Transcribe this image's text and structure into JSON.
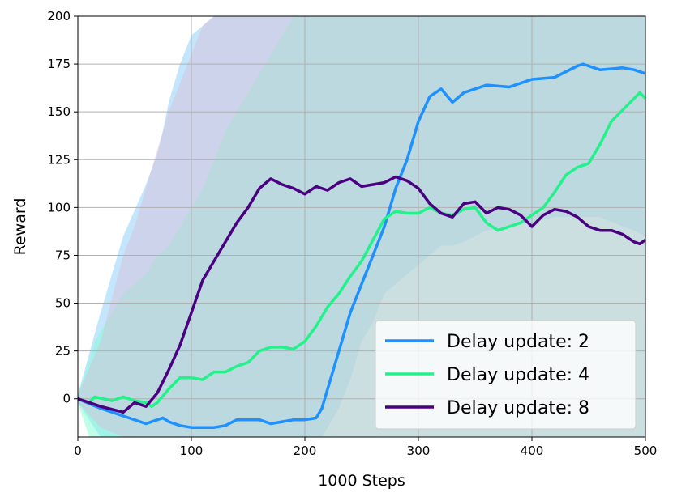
{
  "chart_data": {
    "type": "line",
    "title": "",
    "xlabel": "1000 Steps",
    "ylabel": "Reward",
    "xlim": [
      0,
      500
    ],
    "ylim": [
      -20,
      200
    ],
    "grid": true,
    "legend_position": "bottom-right",
    "x_ticks": [
      "0",
      "100",
      "200",
      "300",
      "400",
      "500"
    ],
    "y_ticks": [
      "0",
      "25",
      "50",
      "75",
      "100",
      "125",
      "150",
      "175",
      "200"
    ],
    "x_tick_values": [
      0,
      100,
      200,
      300,
      400,
      500
    ],
    "y_tick_values": [
      0,
      25,
      50,
      75,
      100,
      125,
      150,
      175,
      200
    ],
    "series": [
      {
        "name": "Delay update: 2",
        "color": "#1e90ff",
        "band_color": "#87cefa",
        "x": [
          0,
          20,
          40,
          60,
          70,
          75,
          80,
          90,
          100,
          120,
          130,
          140,
          160,
          170,
          180,
          190,
          200,
          210,
          215,
          220,
          230,
          240,
          250,
          260,
          270,
          280,
          290,
          300,
          310,
          320,
          330,
          340,
          350,
          360,
          380,
          400,
          420,
          440,
          445,
          460,
          480,
          490,
          500
        ],
        "values": [
          0,
          -5,
          -9,
          -13,
          -11,
          -10,
          -12,
          -14,
          -15,
          -15,
          -14,
          -11,
          -11,
          -13,
          -12,
          -11,
          -11,
          -10,
          -5,
          5,
          25,
          45,
          60,
          75,
          90,
          110,
          125,
          145,
          158,
          162,
          155,
          160,
          162,
          164,
          163,
          167,
          168,
          174,
          175,
          172,
          173,
          172,
          170
        ],
        "band_upper": [
          2,
          45,
          85,
          112,
          128,
          140,
          155,
          175,
          190,
          200,
          200,
          200,
          200,
          200,
          200,
          200,
          200,
          200,
          200,
          200,
          200,
          200,
          200,
          200,
          200,
          200,
          200,
          200,
          200,
          200,
          200,
          200,
          200,
          200,
          200,
          200,
          200,
          200,
          200,
          200,
          200,
          200,
          200
        ],
        "band_lower": [
          -2,
          -20,
          -20,
          -20,
          -20,
          -20,
          -20,
          -20,
          -20,
          -20,
          -20,
          -20,
          -20,
          -20,
          -20,
          -20,
          -20,
          -20,
          -20,
          -15,
          -5,
          10,
          30,
          40,
          55,
          60,
          65,
          70,
          75,
          80,
          80,
          82,
          85,
          88,
          90,
          92,
          95,
          95,
          95,
          95,
          90,
          88,
          85
        ]
      },
      {
        "name": "Delay update: 4",
        "color": "#21f28a",
        "band_color": "#7fffd4",
        "x": [
          0,
          10,
          15,
          30,
          40,
          50,
          60,
          65,
          70,
          80,
          90,
          100,
          110,
          120,
          130,
          140,
          150,
          160,
          170,
          180,
          190,
          200,
          210,
          220,
          230,
          240,
          250,
          260,
          270,
          280,
          290,
          300,
          310,
          320,
          330,
          340,
          350,
          360,
          370,
          380,
          390,
          400,
          410,
          420,
          430,
          440,
          450,
          460,
          470,
          480,
          490,
          495,
          500
        ],
        "values": [
          0,
          -2,
          1,
          -1,
          1,
          -1,
          -2,
          -4,
          -2,
          5,
          11,
          11,
          10,
          14,
          14,
          17,
          19,
          25,
          27,
          27,
          26,
          30,
          38,
          48,
          55,
          64,
          72,
          83,
          94,
          98,
          97,
          97,
          100,
          97,
          96,
          99,
          100,
          92,
          88,
          90,
          92,
          96,
          100,
          108,
          117,
          121,
          123,
          133,
          145,
          151,
          157,
          160,
          157
        ],
        "band_upper": [
          2,
          20,
          30,
          45,
          55,
          60,
          65,
          70,
          75,
          80,
          90,
          100,
          110,
          125,
          140,
          150,
          160,
          170,
          180,
          190,
          200,
          200,
          200,
          200,
          200,
          200,
          200,
          200,
          200,
          200,
          200,
          200,
          200,
          200,
          200,
          200,
          200,
          200,
          200,
          200,
          200,
          200,
          200,
          200,
          200,
          200,
          200,
          200,
          200,
          200,
          200,
          200,
          200
        ],
        "band_lower": [
          -2,
          -20,
          -20,
          -20,
          -20,
          -20,
          -20,
          -20,
          -20,
          -20,
          -20,
          -20,
          -20,
          -20,
          -20,
          -20,
          -20,
          -20,
          -20,
          -20,
          -20,
          -20,
          -20,
          -20,
          -20,
          -20,
          -20,
          -20,
          -20,
          -20,
          -20,
          -20,
          -20,
          -20,
          -20,
          -20,
          -20,
          -20,
          -20,
          -20,
          -20,
          -20,
          -20,
          -20,
          -20,
          -20,
          -20,
          -20,
          -20,
          -20,
          -20,
          -20,
          -20
        ]
      },
      {
        "name": "Delay update: 8",
        "color": "#4b0082",
        "band_color": "#d8bfd8",
        "x": [
          0,
          20,
          40,
          50,
          60,
          70,
          80,
          90,
          100,
          110,
          120,
          130,
          140,
          150,
          160,
          170,
          180,
          190,
          200,
          210,
          220,
          230,
          240,
          250,
          260,
          270,
          280,
          290,
          300,
          310,
          320,
          330,
          340,
          350,
          360,
          370,
          380,
          390,
          400,
          410,
          420,
          430,
          440,
          450,
          460,
          470,
          480,
          490,
          495,
          500
        ],
        "values": [
          0,
          -4,
          -7,
          -2,
          -4,
          3,
          15,
          28,
          45,
          62,
          72,
          82,
          92,
          100,
          110,
          115,
          112,
          110,
          107,
          111,
          109,
          113,
          115,
          111,
          112,
          113,
          116,
          114,
          110,
          102,
          97,
          95,
          102,
          103,
          97,
          100,
          99,
          96,
          90,
          96,
          99,
          98,
          95,
          90,
          88,
          88,
          86,
          82,
          81,
          83
        ],
        "band_upper": [
          2,
          30,
          75,
          90,
          110,
          130,
          150,
          165,
          180,
          195,
          200,
          200,
          200,
          200,
          200,
          200,
          200,
          200,
          200,
          200,
          200,
          200,
          200,
          200,
          200,
          200,
          200,
          200,
          200,
          200,
          200,
          200,
          200,
          200,
          200,
          200,
          200,
          200,
          200,
          200,
          200,
          200,
          200,
          200,
          200,
          200,
          200,
          200,
          200,
          200
        ],
        "band_lower": [
          -2,
          -15,
          -20,
          -20,
          -20,
          -20,
          -20,
          -20,
          -20,
          -20,
          -20,
          -20,
          -20,
          -20,
          -20,
          -20,
          -20,
          -20,
          -20,
          -20,
          -20,
          -20,
          -20,
          -20,
          -20,
          -20,
          -20,
          -20,
          -20,
          -20,
          -20,
          -20,
          -20,
          -20,
          -20,
          -20,
          -20,
          -20,
          -20,
          -20,
          -20,
          -20,
          -20,
          -20,
          -20,
          -20,
          -20,
          -20,
          -20,
          -20
        ]
      }
    ]
  }
}
